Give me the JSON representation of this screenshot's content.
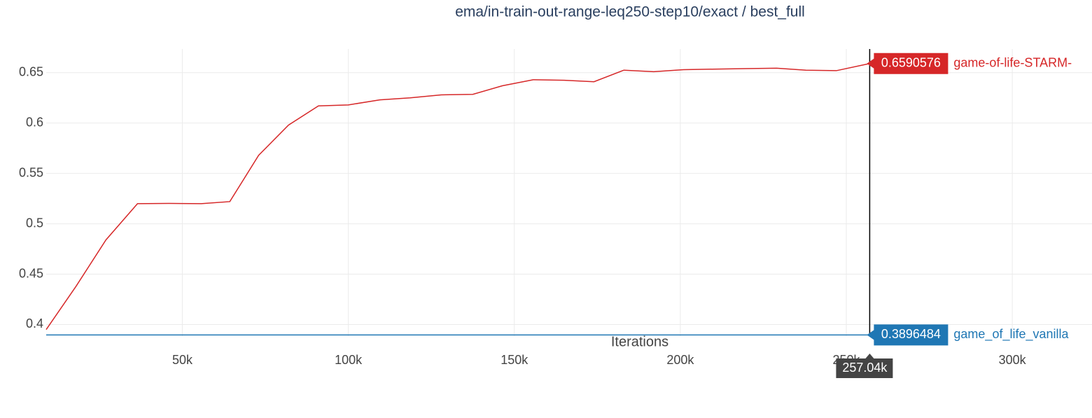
{
  "chart_data": {
    "type": "line",
    "title": "ema/in-train-out-range-leq250-step10/exact / best_full",
    "x_label": "Iterations",
    "xlim": [
      9000,
      324000
    ],
    "ylim": [
      0.3885,
      0.6735
    ],
    "xticks": [
      {
        "value": 50000,
        "label": "50k"
      },
      {
        "value": 100000,
        "label": "100k"
      },
      {
        "value": 150000,
        "label": "150k"
      },
      {
        "value": 200000,
        "label": "200k"
      },
      {
        "value": 250000,
        "label": "250k"
      },
      {
        "value": 300000,
        "label": "300k"
      }
    ],
    "yticks": [
      0.4,
      0.45,
      0.5,
      0.55,
      0.6,
      0.65
    ],
    "grid": true,
    "hover_x": {
      "value": 257040,
      "label": "257.04k"
    },
    "series": [
      {
        "name": "game-of-life-STARM-",
        "color": "#d62728",
        "x": [
          9000,
          18000,
          27000,
          36500,
          46000,
          55700,
          64300,
          73000,
          82000,
          91000,
          100000,
          109500,
          118600,
          128000,
          137500,
          146400,
          155700,
          165000,
          174000,
          183000,
          192000,
          201000,
          210000,
          219600,
          229000,
          237800,
          247000,
          257040
        ],
        "values": [
          0.395,
          0.438,
          0.484,
          0.52,
          0.5202,
          0.52,
          0.522,
          0.568,
          0.598,
          0.617,
          0.618,
          0.623,
          0.625,
          0.628,
          0.6285,
          0.637,
          0.643,
          0.6425,
          0.641,
          0.6525,
          0.651,
          0.653,
          0.6535,
          0.654,
          0.6545,
          0.6525,
          0.652,
          0.6590576
        ]
      },
      {
        "name": "game_of_life_vanilla",
        "color": "#1f77b4",
        "x": [
          9000,
          257040
        ],
        "values": [
          0.3896484,
          0.3896484
        ]
      }
    ]
  }
}
